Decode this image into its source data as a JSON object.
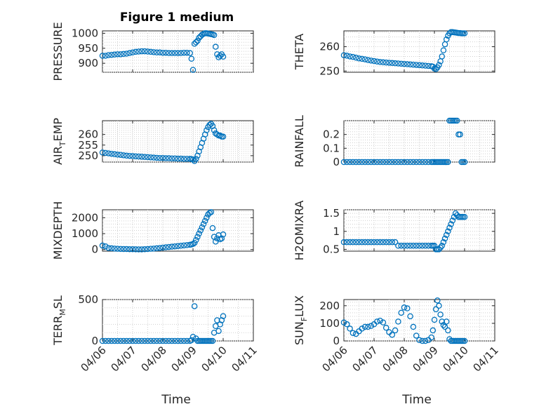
{
  "figure": {
    "title": "Figure 1 medium",
    "xlabel": "Time",
    "marker_color": "#0072BD",
    "x_ticks": [
      "04/06",
      "04/07",
      "04/08",
      "04/09",
      "04/10",
      "04/11"
    ]
  },
  "chart_data": [
    {
      "type": "scatter",
      "title": "Figure 1 medium",
      "ylabel": "PRESSURE",
      "yticks": [
        "900",
        "950",
        "1000"
      ],
      "ylim": [
        870,
        1008
      ],
      "xlim": [
        "04/06",
        "04/11"
      ],
      "grid": true,
      "x": [
        0,
        0.1,
        0.2,
        0.3,
        0.4,
        0.5,
        0.6,
        0.7,
        0.8,
        0.9,
        1.0,
        1.1,
        1.2,
        1.3,
        1.4,
        1.5,
        1.6,
        1.7,
        1.8,
        1.9,
        2.0,
        2.1,
        2.2,
        2.3,
        2.4,
        2.5,
        2.6,
        2.7,
        2.8,
        2.9,
        2.95,
        3.0,
        3.05,
        3.1,
        3.15,
        3.2,
        3.25,
        3.3,
        3.35,
        3.4,
        3.45,
        3.5,
        3.55,
        3.6,
        3.65,
        3.7,
        3.75,
        3.8,
        3.85,
        3.9,
        3.95,
        4.0
      ],
      "y": [
        925,
        925,
        927,
        928,
        929,
        930,
        930,
        931,
        932,
        934,
        936,
        938,
        939,
        940,
        940,
        939,
        938,
        937,
        936,
        936,
        935,
        935,
        934,
        934,
        934,
        934,
        934,
        935,
        935,
        934,
        915,
        878,
        965,
        970,
        975,
        985,
        990,
        995,
        998,
        1000,
        1000,
        999,
        998,
        997,
        996,
        994,
        955,
        930,
        920,
        925,
        930,
        922
      ]
    },
    {
      "type": "scatter",
      "ylabel": "THETA",
      "yticks": [
        "250",
        "260"
      ],
      "ylim": [
        249.5,
        266.5
      ],
      "xlim": [
        "04/06",
        "04/11"
      ],
      "grid": true,
      "x": [
        0,
        0.1,
        0.2,
        0.3,
        0.4,
        0.5,
        0.6,
        0.7,
        0.8,
        0.9,
        1.0,
        1.1,
        1.2,
        1.3,
        1.4,
        1.5,
        1.6,
        1.7,
        1.8,
        1.9,
        2.0,
        2.1,
        2.2,
        2.3,
        2.4,
        2.5,
        2.6,
        2.7,
        2.8,
        2.9,
        2.95,
        3.0,
        3.05,
        3.1,
        3.15,
        3.2,
        3.25,
        3.3,
        3.35,
        3.4,
        3.45,
        3.5,
        3.55,
        3.6,
        3.65,
        3.7,
        3.75,
        3.8,
        3.85,
        3.9,
        3.95,
        4.0
      ],
      "y": [
        256.5,
        256.3,
        256.0,
        255.8,
        255.5,
        255.2,
        255.0,
        254.8,
        254.5,
        254.3,
        254.1,
        253.9,
        253.7,
        253.6,
        253.5,
        253.4,
        253.3,
        253.2,
        253.1,
        253.0,
        252.9,
        252.8,
        252.7,
        252.6,
        252.5,
        252.4,
        252.3,
        252.2,
        252.1,
        252.0,
        251.8,
        251.0,
        250.8,
        251.5,
        252.5,
        254.0,
        256.0,
        258.5,
        261.0,
        263.0,
        264.5,
        265.5,
        266.0,
        266.0,
        265.9,
        265.8,
        265.7,
        265.6,
        265.6,
        265.5,
        265.5,
        265.5
      ]
    },
    {
      "type": "scatter",
      "ylabel": "AIRTEMP",
      "ylabel_main": "AIR",
      "ylabel_sub": "T",
      "ylabel_rest": "EMP",
      "yticks": [
        "250",
        "255",
        "260"
      ],
      "ylim": [
        247,
        266.5
      ],
      "xlim": [
        "04/06",
        "04/11"
      ],
      "grid": true,
      "x": [
        0,
        0.1,
        0.2,
        0.3,
        0.4,
        0.5,
        0.6,
        0.7,
        0.8,
        0.9,
        1.0,
        1.1,
        1.2,
        1.3,
        1.4,
        1.5,
        1.6,
        1.7,
        1.8,
        1.9,
        2.0,
        2.1,
        2.2,
        2.3,
        2.4,
        2.5,
        2.6,
        2.7,
        2.8,
        2.9,
        2.95,
        3.0,
        3.05,
        3.1,
        3.15,
        3.2,
        3.25,
        3.3,
        3.35,
        3.4,
        3.45,
        3.5,
        3.55,
        3.6,
        3.65,
        3.7,
        3.75,
        3.8,
        3.85,
        3.9,
        3.95,
        4.0
      ],
      "y": [
        251.5,
        251.3,
        251.1,
        250.9,
        250.7,
        250.5,
        250.4,
        250.2,
        250.0,
        249.9,
        249.8,
        249.7,
        249.6,
        249.5,
        249.4,
        249.3,
        249.2,
        249.1,
        249.0,
        248.9,
        248.9,
        248.8,
        248.8,
        248.7,
        248.7,
        248.6,
        248.6,
        248.5,
        248.5,
        248.5,
        248.4,
        248.2,
        247.5,
        248.5,
        250.0,
        252.0,
        254.0,
        256.0,
        258.0,
        260.0,
        262.0,
        263.5,
        264.5,
        265.0,
        264.0,
        262.0,
        260.5,
        260.0,
        259.5,
        259.5,
        259.0,
        259.0
      ]
    },
    {
      "type": "scatter",
      "ylabel": "RAINFALL",
      "yticks": [
        "0",
        "0.1",
        "0.2"
      ],
      "ylim": [
        0,
        0.3
      ],
      "xlim": [
        "04/06",
        "04/11"
      ],
      "grid": true,
      "x": [
        0,
        0.1,
        0.2,
        0.3,
        0.4,
        0.5,
        0.6,
        0.7,
        0.8,
        0.9,
        1.0,
        1.1,
        1.2,
        1.3,
        1.4,
        1.5,
        1.6,
        1.7,
        1.8,
        1.9,
        2.0,
        2.1,
        2.2,
        2.3,
        2.4,
        2.5,
        2.6,
        2.7,
        2.8,
        2.9,
        2.95,
        3.0,
        3.05,
        3.1,
        3.15,
        3.2,
        3.25,
        3.3,
        3.35,
        3.4,
        3.45,
        3.5,
        3.55,
        3.6,
        3.65,
        3.7,
        3.75,
        3.8,
        3.85,
        3.9,
        3.95,
        4.0
      ],
      "y": [
        0,
        0,
        0,
        0,
        0,
        0,
        0,
        0,
        0,
        0,
        0,
        0,
        0,
        0,
        0,
        0,
        0,
        0,
        0,
        0,
        0,
        0,
        0,
        0,
        0,
        0,
        0,
        0,
        0,
        0,
        0,
        0,
        0,
        0,
        0,
        0,
        0,
        0,
        0,
        0,
        0,
        0.3,
        0.3,
        0.3,
        0.3,
        0.3,
        0.3,
        0.2,
        0.2,
        0,
        0,
        0
      ]
    },
    {
      "type": "scatter",
      "ylabel": "MIXDEPTH",
      "yticks": [
        "0",
        "1000",
        "2000"
      ],
      "ylim": [
        -100,
        2500
      ],
      "xlim": [
        "04/06",
        "04/11"
      ],
      "grid": true,
      "x": [
        0,
        0.1,
        0.2,
        0.3,
        0.4,
        0.5,
        0.6,
        0.7,
        0.8,
        0.9,
        1.0,
        1.1,
        1.2,
        1.3,
        1.4,
        1.5,
        1.6,
        1.7,
        1.8,
        1.9,
        2.0,
        2.1,
        2.2,
        2.3,
        2.4,
        2.5,
        2.6,
        2.7,
        2.8,
        2.9,
        2.95,
        3.0,
        3.05,
        3.1,
        3.15,
        3.2,
        3.25,
        3.3,
        3.35,
        3.4,
        3.45,
        3.5,
        3.55,
        3.6,
        3.65,
        3.7,
        3.75,
        3.8,
        3.85,
        3.9,
        3.95,
        4.0
      ],
      "y": [
        250,
        200,
        100,
        80,
        60,
        50,
        40,
        30,
        30,
        20,
        20,
        15,
        10,
        10,
        20,
        30,
        50,
        60,
        80,
        100,
        120,
        140,
        160,
        180,
        200,
        220,
        240,
        260,
        280,
        300,
        320,
        350,
        420,
        600,
        800,
        1000,
        1200,
        1400,
        1600,
        1800,
        2000,
        2200,
        2300,
        2350,
        1350,
        800,
        500,
        700,
        900,
        650,
        700,
        950
      ]
    },
    {
      "type": "scatter",
      "ylabel": "H2OMIXRA",
      "yticks": [
        "0.5",
        "1",
        "1.5"
      ],
      "ylim": [
        0.45,
        1.6
      ],
      "xlim": [
        "04/06",
        "04/11"
      ],
      "grid": true,
      "x": [
        0,
        0.1,
        0.2,
        0.3,
        0.4,
        0.5,
        0.6,
        0.7,
        0.8,
        0.9,
        1.0,
        1.1,
        1.2,
        1.3,
        1.4,
        1.5,
        1.6,
        1.7,
        1.8,
        1.9,
        2.0,
        2.1,
        2.2,
        2.3,
        2.4,
        2.5,
        2.6,
        2.7,
        2.8,
        2.9,
        2.95,
        3.0,
        3.05,
        3.1,
        3.15,
        3.2,
        3.25,
        3.3,
        3.35,
        3.4,
        3.45,
        3.5,
        3.55,
        3.6,
        3.65,
        3.7,
        3.75,
        3.8,
        3.85,
        3.9,
        3.95,
        4.0
      ],
      "y": [
        0.7,
        0.7,
        0.7,
        0.7,
        0.7,
        0.7,
        0.7,
        0.7,
        0.7,
        0.7,
        0.7,
        0.7,
        0.7,
        0.7,
        0.7,
        0.7,
        0.7,
        0.7,
        0.6,
        0.6,
        0.6,
        0.6,
        0.6,
        0.6,
        0.6,
        0.6,
        0.6,
        0.6,
        0.6,
        0.6,
        0.6,
        0.6,
        0.5,
        0.5,
        0.5,
        0.55,
        0.6,
        0.7,
        0.8,
        0.9,
        1.0,
        1.1,
        1.2,
        1.3,
        1.4,
        1.5,
        1.45,
        1.4,
        1.4,
        1.4,
        1.4,
        1.4
      ]
    },
    {
      "type": "scatter",
      "ylabel": "TERRMSL",
      "ylabel_main": "TERR",
      "ylabel_sub": "M",
      "ylabel_rest": "SL",
      "yticks": [
        "0",
        "500"
      ],
      "ylim": [
        0,
        500
      ],
      "xlim": [
        "04/06",
        "04/11"
      ],
      "grid": true,
      "x": [
        0,
        0.1,
        0.2,
        0.3,
        0.4,
        0.5,
        0.6,
        0.7,
        0.8,
        0.9,
        1.0,
        1.1,
        1.2,
        1.3,
        1.4,
        1.5,
        1.6,
        1.7,
        1.8,
        1.9,
        2.0,
        2.1,
        2.2,
        2.3,
        2.4,
        2.5,
        2.6,
        2.7,
        2.8,
        2.9,
        2.95,
        3.0,
        3.05,
        3.1,
        3.15,
        3.2,
        3.25,
        3.3,
        3.35,
        3.4,
        3.45,
        3.5,
        3.55,
        3.6,
        3.65,
        3.7,
        3.75,
        3.8,
        3.85,
        3.9,
        3.95,
        4.0
      ],
      "y": [
        0,
        0,
        0,
        0,
        0,
        0,
        0,
        0,
        0,
        0,
        0,
        0,
        0,
        0,
        0,
        0,
        0,
        0,
        0,
        0,
        0,
        0,
        0,
        0,
        0,
        0,
        0,
        0,
        0,
        0,
        10,
        50,
        420,
        30,
        0,
        0,
        0,
        0,
        0,
        0,
        0,
        0,
        0,
        0,
        0,
        100,
        180,
        250,
        120,
        200,
        250,
        300
      ]
    },
    {
      "type": "scatter",
      "ylabel": "SUNFLUX",
      "ylabel_main": "SUN",
      "ylabel_sub": "F",
      "ylabel_rest": "LUX",
      "yticks": [
        "0",
        "100",
        "200"
      ],
      "ylim": [
        0,
        235
      ],
      "xlim": [
        "04/06",
        "04/11"
      ],
      "grid": true,
      "x": [
        0,
        0.1,
        0.2,
        0.3,
        0.4,
        0.5,
        0.6,
        0.7,
        0.8,
        0.9,
        1.0,
        1.1,
        1.2,
        1.3,
        1.4,
        1.5,
        1.6,
        1.7,
        1.8,
        1.9,
        2.0,
        2.1,
        2.2,
        2.3,
        2.4,
        2.5,
        2.6,
        2.7,
        2.8,
        2.9,
        2.95,
        3.0,
        3.05,
        3.1,
        3.15,
        3.2,
        3.25,
        3.3,
        3.35,
        3.4,
        3.45,
        3.5,
        3.55,
        3.6,
        3.65,
        3.7,
        3.75,
        3.8,
        3.85,
        3.9,
        3.95,
        4.0
      ],
      "y": [
        105,
        95,
        70,
        45,
        40,
        55,
        70,
        80,
        80,
        85,
        95,
        110,
        115,
        105,
        75,
        50,
        35,
        60,
        110,
        160,
        190,
        185,
        140,
        80,
        30,
        5,
        0,
        0,
        5,
        20,
        60,
        120,
        180,
        230,
        200,
        150,
        110,
        90,
        80,
        110,
        60,
        10,
        0,
        0,
        0,
        0,
        0,
        0,
        0,
        0,
        0,
        0
      ]
    }
  ]
}
